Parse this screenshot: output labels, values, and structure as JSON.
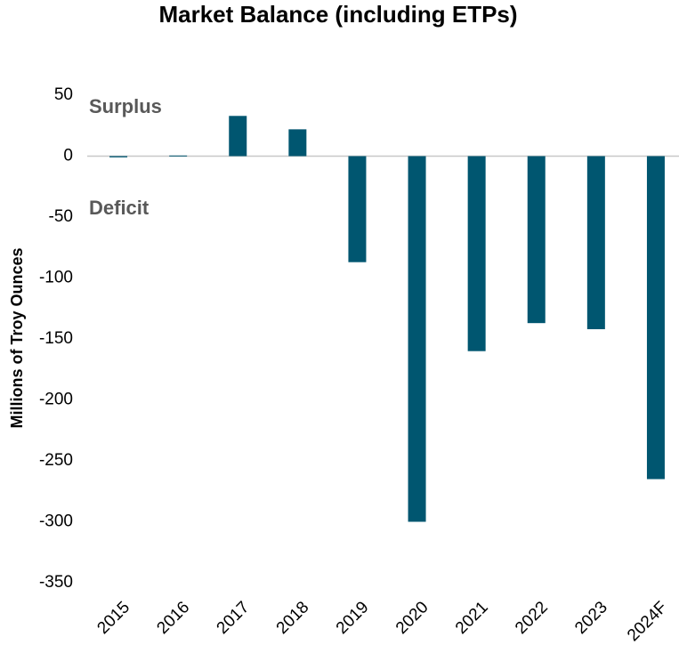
{
  "chart_data": {
    "type": "bar",
    "title": "Market Balance (including ETPs)",
    "y_label": "Millions of Troy Ounces",
    "annotations": [
      "Surplus",
      "Deficit"
    ],
    "categories": [
      "2015",
      "2016",
      "2017",
      "2018",
      "2019",
      "2020",
      "2021",
      "2022",
      "2023",
      "2024F"
    ],
    "values": [
      -1,
      0.5,
      33,
      22,
      -87,
      -300,
      -160,
      -137,
      -142,
      -265
    ],
    "color": "#005670",
    "ylim": [
      -350,
      50
    ],
    "yticks": [
      -350,
      -300,
      -250,
      -200,
      -150,
      -100,
      -50,
      0,
      50
    ],
    "grid": false
  }
}
